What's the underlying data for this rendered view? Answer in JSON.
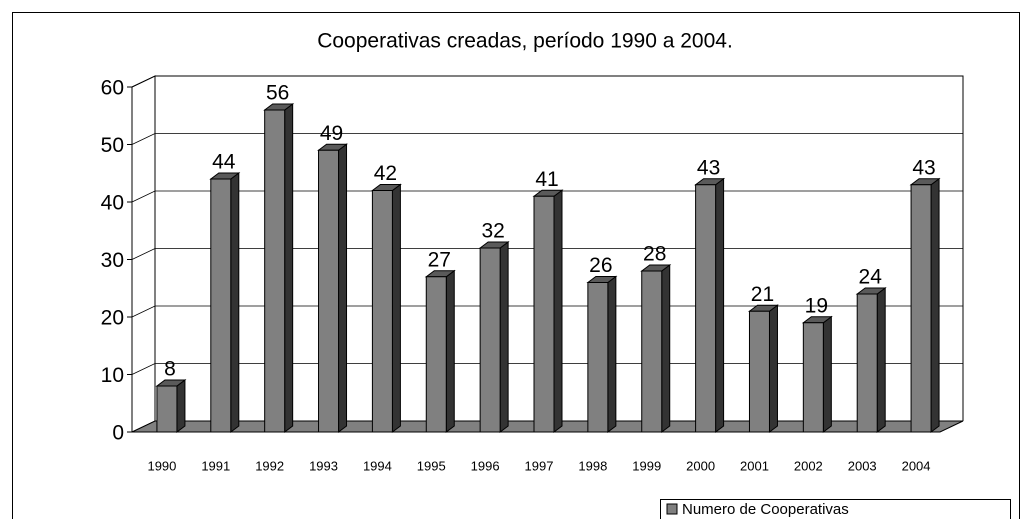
{
  "chart_data": {
    "type": "bar",
    "title": "Cooperativas creadas, período 1990 a 2004.",
    "categories": [
      "1990",
      "1991",
      "1992",
      "1993",
      "1994",
      "1995",
      "1996",
      "1997",
      "1998",
      "1999",
      "2000",
      "2001",
      "2002",
      "2003",
      "2004"
    ],
    "series": [
      {
        "name": "Numero de Cooperativas",
        "color": "#808080",
        "values": [
          8,
          44,
          56,
          49,
          42,
          27,
          32,
          41,
          26,
          28,
          43,
          21,
          19,
          24,
          43
        ]
      }
    ],
    "ylim": [
      0,
      60
    ],
    "yticks": [
      0,
      10,
      20,
      30,
      40,
      50,
      60
    ],
    "grid": true,
    "legend": "bottom-right"
  }
}
